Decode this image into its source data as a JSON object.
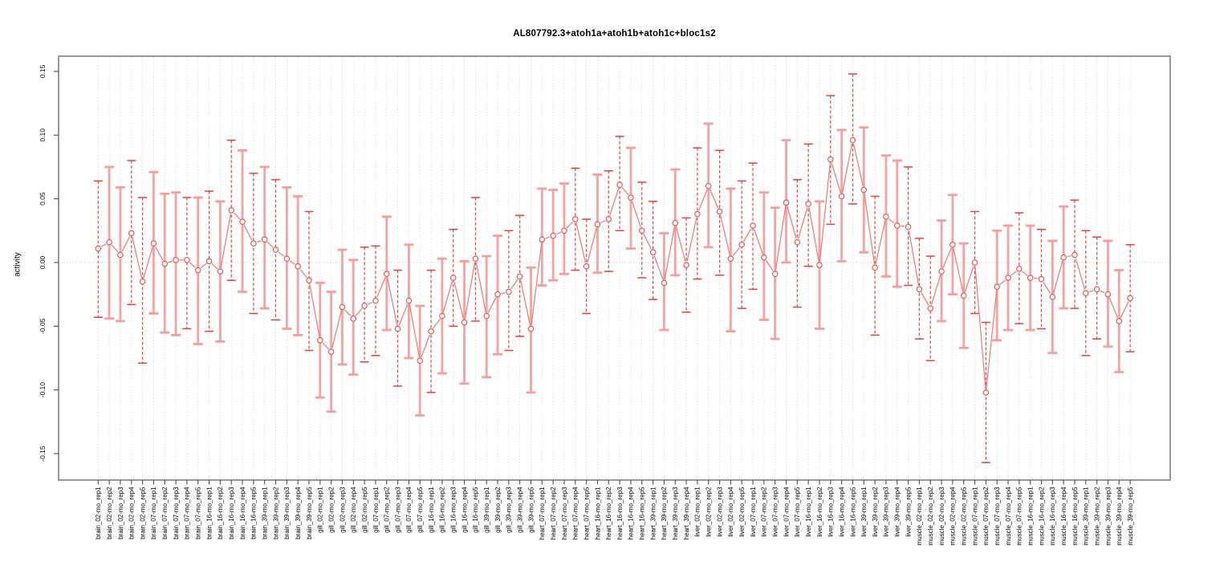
{
  "chart_data": {
    "type": "scatter",
    "title": "AL807792.3+atoh1a+atoh1b+atoh1c+bloc1s2",
    "ylabel": "activity",
    "xlabel": "",
    "ylim": [
      -0.166,
      0.162
    ],
    "yticks": [
      -0.15,
      -0.1,
      -0.05,
      0.0,
      0.05,
      0.1,
      0.15
    ],
    "ytick_labels": [
      "-0.15",
      "-0.10",
      "-0.05",
      "0.00",
      "0.05",
      "0.10",
      "0.15"
    ],
    "grid": "vertical dotted gridline per category; dotted horizontal line at y=0",
    "legend": "none",
    "marker": "open-circle connected by gapped solid segments (R type='b')",
    "colors": {
      "error_bar_dark": "#e7403d",
      "error_bar_pink": "#f79d9b",
      "series_line": "#f1706d",
      "point_outline": "#ee4946",
      "gridline": "#d4d4d4",
      "zero_line": "#c8c8c8",
      "plot_border": "#8c8c8c",
      "axis_tick": "#4a4a4a",
      "text": "#000000"
    },
    "categories": [
      "brain_02-mo_rep1",
      "brain_02-mo_rep2",
      "brain_02-mo_rep3",
      "brain_02-mo_rep4",
      "brain_02-mo_rep5",
      "brain_07-mo_rep1",
      "brain_07-mo_rep2",
      "brain_07-mo_rep3",
      "brain_07-mo_rep4",
      "brain_07-mo_rep5",
      "brain_16-mo_rep1",
      "brain_16-mo_rep2",
      "brain_16-mo_rep3",
      "brain_16-mo_rep4",
      "brain_16-mo_rep5",
      "brain_39-mo_rep1",
      "brain_39-mo_rep2",
      "brain_39-mo_rep3",
      "brain_39-mo_rep4",
      "brain_39-mo_rep5",
      "gill_02-mo_rep1",
      "gill_02-mo_rep2",
      "gill_02-mo_rep3",
      "gill_02-mo_rep4",
      "gill_02-mo_rep5",
      "gill_07-mo_rep1",
      "gill_07-mo_rep2",
      "gill_07-mo_rep3",
      "gill_07-mo_rep4",
      "gill_07-mo_rep5",
      "gill_16-mo_rep1",
      "gill_16-mo_rep2",
      "gill_16-mo_rep3",
      "gill_16-mo_rep4",
      "gill_16-mo_rep5",
      "gill_39-mo_rep1",
      "gill_39-mo_rep2",
      "gill_39-mo_rep3",
      "gill_39-mo_rep4",
      "gill_39-mo_rep5",
      "heart_07-mo_rep1",
      "heart_07-mo_rep2",
      "heart_07-mo_rep3",
      "heart_07-mo_rep4",
      "heart_07-mo_rep5",
      "heart_16-mo_rep1",
      "heart_16-mo_rep2",
      "heart_16-mo_rep3",
      "heart_16-mo_rep4",
      "heart_16-mo_rep5",
      "heart_39-mo_rep1",
      "heart_39-mo_rep2",
      "heart_39-mo_rep3",
      "heart_39-mo_rep4",
      "liver_02-mo_rep1",
      "liver_02-mo_rep2",
      "liver_02-mo_rep3",
      "liver_02-mo_rep4",
      "liver_02-mo_rep5",
      "liver_07-mo_rep1",
      "liver_07-mo_rep2",
      "liver_07-mo_rep3",
      "liver_07-mo_rep4",
      "liver_07-mo_rep5",
      "liver_16-mo_rep1",
      "liver_16-mo_rep2",
      "liver_16-mo_rep3",
      "liver_16-mo_rep4",
      "liver_16-mo_rep5",
      "liver_39-mo_rep1",
      "liver_39-mo_rep2",
      "liver_39-mo_rep3",
      "liver_39-mo_rep4",
      "liver_39-mo_rep5",
      "muscle_02-mo_rep1",
      "muscle_02-mo_rep2",
      "muscle_02-mo_rep3",
      "muscle_02-mo_rep4",
      "muscle_02-mo_rep5",
      "muscle_07-mo_rep1",
      "muscle_07-mo_rep2",
      "muscle_07-mo_rep3",
      "muscle_07-mo_rep4",
      "muscle_07-mo_rep5",
      "muscle_16-mo_rep1",
      "muscle_16-mo_rep2",
      "muscle_16-mo_rep3",
      "muscle_16-mo_rep4",
      "muscle_16-mo_rep5",
      "muscle_39-mo_rep1",
      "muscle_39-mo_rep2",
      "muscle_39-mo_rep3",
      "muscle_39-mo_rep4",
      "muscle_39-mo_rep5"
    ],
    "series": [
      {
        "name": "activity",
        "values": [
          0.011,
          0.016,
          0.006,
          0.023,
          -0.015,
          0.015,
          -0.001,
          0.002,
          0.002,
          -0.006,
          0.001,
          -0.007,
          0.041,
          0.032,
          0.015,
          0.018,
          0.01,
          0.003,
          -0.003,
          -0.014,
          -0.061,
          -0.07,
          -0.035,
          -0.044,
          -0.034,
          -0.03,
          -0.009,
          -0.052,
          -0.03,
          -0.077,
          -0.054,
          -0.042,
          -0.012,
          -0.047,
          0.003,
          -0.042,
          -0.025,
          -0.023,
          -0.011,
          -0.052,
          0.018,
          0.021,
          0.025,
          0.034,
          -0.003,
          0.03,
          0.034,
          0.061,
          0.051,
          0.025,
          0.008,
          -0.016,
          0.031,
          -0.002,
          0.038,
          0.06,
          0.04,
          0.003,
          0.014,
          0.029,
          0.004,
          -0.009,
          0.047,
          0.016,
          0.046,
          -0.002,
          0.081,
          0.052,
          0.096,
          0.057,
          -0.004,
          0.036,
          0.029,
          0.028,
          -0.021,
          -0.036,
          -0.007,
          0.014,
          -0.026,
          0.0,
          -0.102,
          -0.019,
          -0.012,
          -0.005,
          -0.012,
          -0.013,
          -0.027,
          0.004,
          0.006,
          -0.024,
          -0.021,
          -0.025,
          -0.046,
          -0.028
        ],
        "err_low": [
          -0.043,
          -0.044,
          -0.046,
          -0.033,
          -0.079,
          -0.04,
          -0.055,
          -0.057,
          -0.052,
          -0.064,
          -0.054,
          -0.062,
          -0.014,
          -0.023,
          -0.04,
          -0.036,
          -0.045,
          -0.052,
          -0.057,
          -0.069,
          -0.106,
          -0.117,
          -0.08,
          -0.088,
          -0.078,
          -0.073,
          -0.053,
          -0.097,
          -0.075,
          -0.12,
          -0.102,
          -0.087,
          -0.05,
          -0.095,
          -0.046,
          -0.09,
          -0.072,
          -0.069,
          -0.058,
          -0.102,
          -0.018,
          -0.014,
          -0.009,
          -0.006,
          -0.04,
          -0.008,
          -0.007,
          0.025,
          0.011,
          -0.012,
          -0.029,
          -0.053,
          -0.01,
          -0.039,
          -0.013,
          0.012,
          -0.01,
          -0.054,
          -0.036,
          -0.021,
          -0.045,
          -0.06,
          0.0,
          -0.035,
          -0.003,
          -0.052,
          0.03,
          0.001,
          0.046,
          0.008,
          -0.057,
          -0.011,
          -0.019,
          -0.018,
          -0.06,
          -0.077,
          -0.046,
          -0.025,
          -0.067,
          -0.04,
          -0.157,
          -0.061,
          -0.053,
          -0.048,
          -0.053,
          -0.052,
          -0.071,
          -0.036,
          -0.036,
          -0.073,
          -0.06,
          -0.066,
          -0.086,
          -0.07
        ],
        "err_high": [
          0.064,
          0.075,
          0.059,
          0.08,
          0.051,
          0.071,
          0.054,
          0.055,
          0.051,
          0.051,
          0.056,
          0.048,
          0.096,
          0.088,
          0.07,
          0.075,
          0.065,
          0.059,
          0.052,
          0.04,
          -0.016,
          -0.023,
          0.01,
          0.002,
          0.012,
          0.013,
          0.036,
          -0.006,
          0.014,
          -0.034,
          -0.006,
          0.003,
          0.026,
          0.001,
          0.051,
          0.005,
          0.021,
          0.025,
          0.037,
          -0.004,
          0.058,
          0.057,
          0.062,
          0.074,
          0.034,
          0.069,
          0.072,
          0.099,
          0.09,
          0.063,
          0.048,
          0.023,
          0.073,
          0.035,
          0.09,
          0.109,
          0.088,
          0.058,
          0.064,
          0.078,
          0.055,
          0.043,
          0.096,
          0.065,
          0.093,
          0.048,
          0.131,
          0.104,
          0.148,
          0.106,
          0.052,
          0.084,
          0.08,
          0.075,
          0.019,
          0.005,
          0.033,
          0.053,
          0.015,
          0.04,
          -0.047,
          0.025,
          0.029,
          0.039,
          0.029,
          0.026,
          0.017,
          0.044,
          0.049,
          0.025,
          0.02,
          0.017,
          -0.006,
          0.014
        ],
        "bar_styles": [
          "dark",
          "pink",
          "pink",
          "dark",
          "dark",
          "pink",
          "pink",
          "pink",
          "dark",
          "pink",
          "dark",
          "pink",
          "dark",
          "pink",
          "dark",
          "pink",
          "dark",
          "pink",
          "pink",
          "dark",
          "pink",
          "pink",
          "pink",
          "pink",
          "dark",
          "dark",
          "pink",
          "dark",
          "pink",
          "pink",
          "dark",
          "pink",
          "dark",
          "pink",
          "dark",
          "pink",
          "pink",
          "dark",
          "dark",
          "pink",
          "pink",
          "pink",
          "pink",
          "dark",
          "dark",
          "pink",
          "dark",
          "dark",
          "pink",
          "dark",
          "dark",
          "pink",
          "pink",
          "dark",
          "dark",
          "pink",
          "dark",
          "pink",
          "dark",
          "dark",
          "pink",
          "pink",
          "pink",
          "dark",
          "dark",
          "pink",
          "dark",
          "pink",
          "dark",
          "pink",
          "dark",
          "pink",
          "pink",
          "dark",
          "dark",
          "dark",
          "pink",
          "pink",
          "pink",
          "dark",
          "dark",
          "pink",
          "pink",
          "dark",
          "pink",
          "dark",
          "pink",
          "pink",
          "dark",
          "dark",
          "dark",
          "pink",
          "pink",
          "dark"
        ]
      }
    ]
  }
}
